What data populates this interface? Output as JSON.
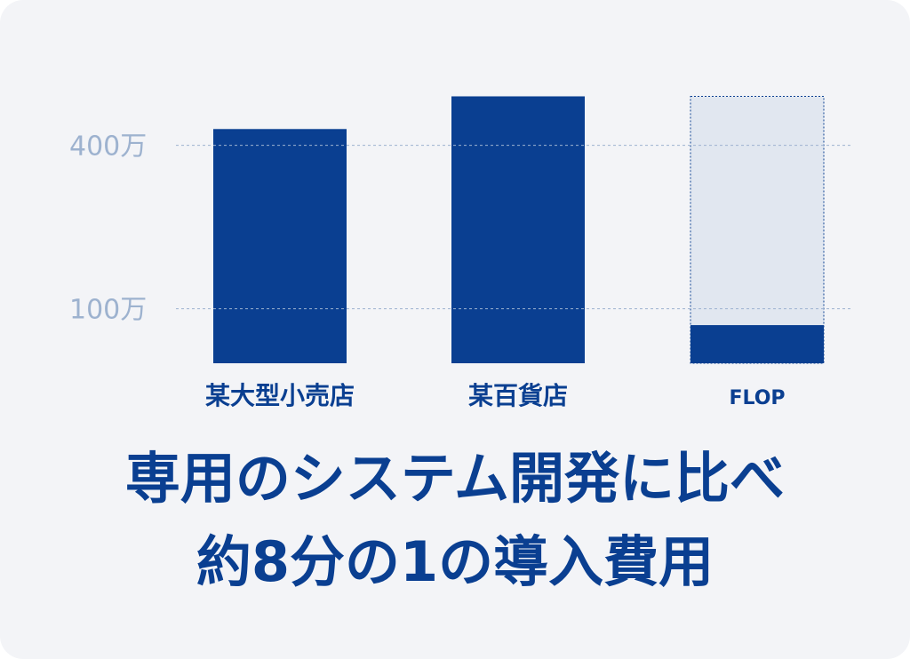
{
  "chart_data": {
    "type": "bar",
    "categories": [
      "某大型小売店",
      "某百貨店",
      "FLOP"
    ],
    "values": [
      430,
      490,
      70
    ],
    "reference_values": [
      null,
      null,
      490
    ],
    "tick_labels": [
      "100万",
      "400万"
    ],
    "tick_values": [
      100,
      400
    ],
    "ylim": [
      0,
      490
    ],
    "grid": "dashed at labeled ticks",
    "colors": {
      "bar": "#0a3f91",
      "reference_fill": "#e1e7f0",
      "reference_stroke": "#0a3f91",
      "tick": "#9db2cf",
      "grid": "#9db2cf",
      "category_label": "#0a3f91"
    }
  },
  "caption": {
    "line1": "専用のシステム開発に比べ",
    "line2": "約8分の1の導入費用"
  }
}
